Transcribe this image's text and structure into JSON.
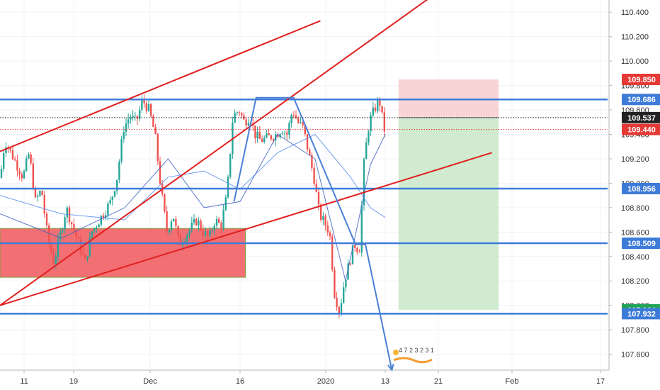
{
  "chart_data": {
    "type": "candlestick",
    "title": "",
    "xlabel": "",
    "ylabel": "",
    "ylim": [
      107.47,
      110.5
    ],
    "y_ticks": [
      "110.400",
      "110.200",
      "110.000",
      "109.800",
      "109.600",
      "109.400",
      "109.200",
      "109.000",
      "108.800",
      "108.600",
      "108.400",
      "108.200",
      "108.000",
      "107.800",
      "107.600"
    ],
    "x_ticks": [
      {
        "label": "11",
        "date": "2019-11-11"
      },
      {
        "label": "19",
        "date": "2019-11-19"
      },
      {
        "label": "Dec",
        "date": "2019-12-01"
      },
      {
        "label": "16",
        "date": "2019-12-16"
      },
      {
        "label": "2020",
        "date": "2020-01-01"
      },
      {
        "label": "13",
        "date": "2020-01-13"
      },
      {
        "label": "21",
        "date": "2020-01-21"
      },
      {
        "label": "Feb",
        "date": "2020-02-01"
      },
      {
        "label": "17",
        "date": "2020-02-17"
      }
    ],
    "price_path": [
      [
        "2019-11-07",
        108.95
      ],
      [
        "2019-11-08",
        109.35
      ],
      [
        "2019-11-11",
        109.05
      ],
      [
        "2019-11-12",
        109.25
      ],
      [
        "2019-11-13",
        108.85
      ],
      [
        "2019-11-14",
        108.95
      ],
      [
        "2019-11-15",
        108.55
      ],
      [
        "2019-11-16",
        108.35
      ],
      [
        "2019-11-18",
        108.8
      ],
      [
        "2019-11-19",
        108.65
      ],
      [
        "2019-11-20",
        108.5
      ],
      [
        "2019-11-21",
        108.35
      ],
      [
        "2019-11-22",
        108.6
      ],
      [
        "2019-11-25",
        108.85
      ],
      [
        "2019-11-26",
        109.05
      ],
      [
        "2019-11-27",
        109.45
      ],
      [
        "2019-11-28",
        109.55
      ],
      [
        "2019-11-29",
        109.5
      ],
      [
        "2019-11-30",
        109.68
      ],
      [
        "2019-12-01",
        109.6
      ],
      [
        "2019-12-02",
        109.4
      ],
      [
        "2019-12-03",
        108.95
      ],
      [
        "2019-12-04",
        108.6
      ],
      [
        "2019-12-05",
        108.75
      ],
      [
        "2019-12-06",
        108.5
      ],
      [
        "2019-12-09",
        108.7
      ],
      [
        "2019-12-10",
        108.6
      ],
      [
        "2019-12-11",
        108.55
      ],
      [
        "2019-12-12",
        108.7
      ],
      [
        "2019-12-13",
        108.65
      ],
      [
        "2019-12-14",
        108.9
      ],
      [
        "2019-12-15",
        109.55
      ],
      [
        "2019-12-16",
        109.6
      ],
      [
        "2019-12-17",
        109.5
      ],
      [
        "2019-12-18",
        109.55
      ],
      [
        "2019-12-19",
        109.4
      ],
      [
        "2019-12-20",
        109.35
      ],
      [
        "2019-12-23",
        109.4
      ],
      [
        "2019-12-24",
        109.45
      ],
      [
        "2019-12-25",
        109.4
      ],
      [
        "2019-12-26",
        109.6
      ],
      [
        "2019-12-27",
        109.5
      ],
      [
        "2019-12-28",
        109.45
      ],
      [
        "2019-12-30",
        109.05
      ],
      [
        "2019-12-31",
        108.75
      ],
      [
        "2020-01-02",
        108.6
      ],
      [
        "2020-01-03",
        108.1
      ],
      [
        "2020-01-04",
        107.95
      ],
      [
        "2020-01-05",
        108.2
      ],
      [
        "2020-01-06",
        108.35
      ],
      [
        "2020-01-07",
        108.5
      ],
      [
        "2020-01-08",
        108.45
      ],
      [
        "2020-01-09",
        109.2
      ],
      [
        "2020-01-10",
        109.5
      ],
      [
        "2020-01-11",
        109.6
      ],
      [
        "2020-01-12",
        109.69
      ],
      [
        "2020-01-13",
        109.44
      ]
    ],
    "moving_averages": [
      {
        "name": "",
        "color": "#5b8def",
        "points": [
          [
            "2019-11-07",
            108.9
          ],
          [
            "2019-11-17",
            108.75
          ],
          [
            "2019-11-27",
            108.7
          ],
          [
            "2019-12-04",
            109.05
          ],
          [
            "2019-12-10",
            109.1
          ],
          [
            "2019-12-16",
            108.95
          ],
          [
            "2019-12-23",
            109.25
          ],
          [
            "2019-12-30",
            109.4
          ],
          [
            "2020-01-06",
            109.05
          ],
          [
            "2020-01-10",
            108.8
          ],
          [
            "2020-01-13",
            108.72
          ]
        ]
      },
      {
        "name": "",
        "color": "#3e63c2",
        "points": [
          [
            "2019-11-07",
            108.75
          ],
          [
            "2019-11-17",
            108.55
          ],
          [
            "2019-11-27",
            108.8
          ],
          [
            "2019-12-04",
            109.2
          ],
          [
            "2019-12-10",
            108.8
          ],
          [
            "2019-12-16",
            108.85
          ],
          [
            "2019-12-23",
            109.4
          ],
          [
            "2019-12-30",
            109.2
          ],
          [
            "2020-01-05",
            108.2
          ],
          [
            "2020-01-10",
            109.15
          ],
          [
            "2020-01-13",
            109.4
          ]
        ]
      }
    ],
    "horizontal_levels": [
      {
        "value": 109.686,
        "label": "109.686",
        "style": "support-resistance",
        "color": "#3d7bd9"
      },
      {
        "value": 108.956,
        "label": "108.956",
        "style": "support-resistance",
        "color": "#3d7bd9"
      },
      {
        "value": 108.509,
        "label": "108.509",
        "style": "support-resistance",
        "color": "#3d7bd9"
      },
      {
        "value": 107.932,
        "label": "107.932",
        "style": "support-resistance",
        "color": "#3d7bd9"
      },
      {
        "value": 109.537,
        "label": "109.537",
        "style": "dotted-black",
        "color": "#222222"
      },
      {
        "value": 109.44,
        "label": "109.440",
        "style": "dotted-red",
        "color": "#e53935"
      }
    ],
    "price_labels": [
      {
        "value": 109.85,
        "label": "109.850",
        "color": "#e53935"
      },
      {
        "value": 109.686,
        "label": "109.686",
        "color": "#3d7bd9"
      },
      {
        "value": 109.537,
        "label": "109.537",
        "color": "#222222"
      },
      {
        "value": 109.44,
        "label": "109.440",
        "color": "#e53935"
      },
      {
        "value": 108.956,
        "label": "108.956",
        "color": "#3d7bd9"
      },
      {
        "value": 108.509,
        "label": "108.509",
        "color": "#3d7bd9"
      },
      {
        "value": 107.964,
        "label": "107.964",
        "color": "#21a35a"
      },
      {
        "value": 107.932,
        "label": "107.932",
        "color": "#3d7bd9"
      }
    ],
    "trendlines": [
      {
        "from": [
          "2019-11-07",
          109.26
        ],
        "to": [
          "2019-12-31",
          110.33
        ],
        "color": "#e02020"
      },
      {
        "from": [
          "2019-11-07",
          108.0
        ],
        "to": [
          "2020-01-20",
          110.53
        ],
        "color": "#e02020"
      },
      {
        "from": [
          "2019-11-07",
          108.0
        ],
        "to": [
          "2020-01-29",
          109.25
        ],
        "color": "#e02020"
      }
    ],
    "projection_path": [
      [
        "2019-12-15",
        108.85
      ],
      [
        "2019-12-19",
        109.7
      ],
      [
        "2019-12-26",
        109.7
      ],
      [
        "2020-01-07",
        108.5
      ],
      [
        "2020-01-09",
        108.5
      ],
      [
        "2020-01-14",
        107.47
      ]
    ],
    "projection_color": "#4a7fd6",
    "demand_zone": {
      "x_from": "2019-11-07",
      "x_to": "2019-12-17",
      "y_from": 108.23,
      "y_to": 108.63,
      "color": "#f0565a"
    },
    "position": {
      "x_from": "2020-01-15",
      "x_to": "2020-01-30",
      "entry": 109.537,
      "stop": 109.85,
      "target": 107.964,
      "stop_color": "#f8c9cb",
      "target_color": "#c8e8c8"
    },
    "watermark_text": "4 7 2 3  2 3 1"
  }
}
